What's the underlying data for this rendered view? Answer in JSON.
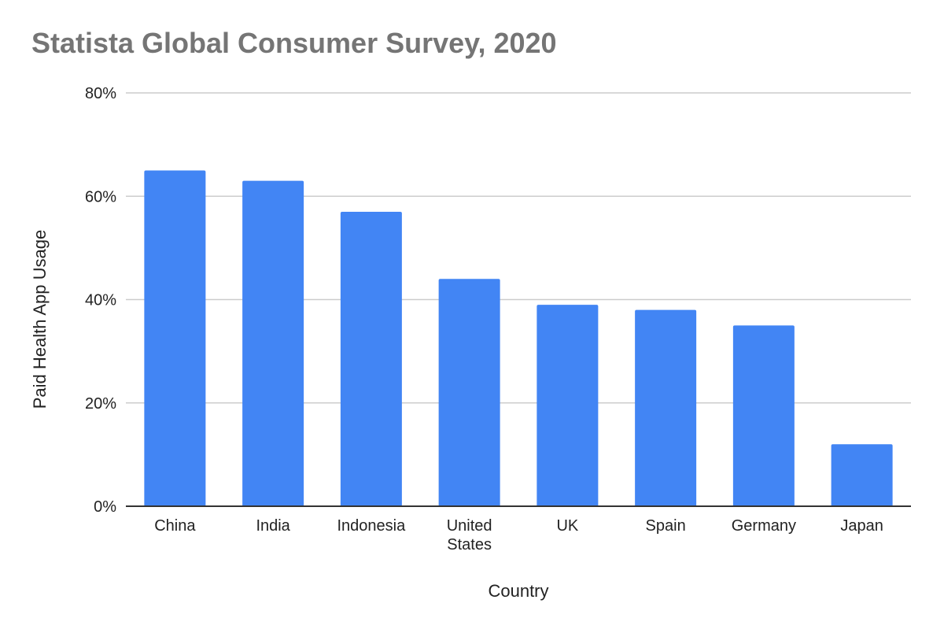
{
  "chart_data": {
    "type": "bar",
    "title": "Statista Global Consumer Survey, 2020",
    "xlabel": "Country",
    "ylabel": "Paid Health App Usage",
    "categories": [
      [
        "China"
      ],
      [
        "India"
      ],
      [
        "Indonesia"
      ],
      [
        "United",
        "States"
      ],
      [
        "UK"
      ],
      [
        "Spain"
      ],
      [
        "Germany"
      ],
      [
        "Japan"
      ]
    ],
    "values": [
      65,
      63,
      57,
      44,
      39,
      38,
      35,
      12
    ],
    "value_unit": "%",
    "ylim": [
      0,
      80
    ],
    "yticks": [
      "0%",
      "20%",
      "40%",
      "60%",
      "80%"
    ],
    "ytick_values": [
      0,
      20,
      40,
      60,
      80
    ],
    "grid": true,
    "legend": "none",
    "colors": {
      "bar": "#4285f4",
      "gridline": "#cccccc",
      "axis": "#333333",
      "title": "#757575",
      "text": "#222222"
    }
  }
}
